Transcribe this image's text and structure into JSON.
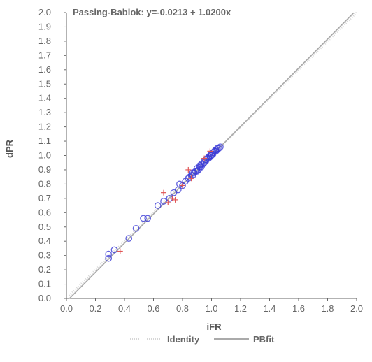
{
  "chart_data": {
    "type": "scatter",
    "title": "",
    "xlabel": "iFR",
    "ylabel": "dPR",
    "xlim": [
      0.0,
      2.0
    ],
    "ylim": [
      0.0,
      2.0
    ],
    "x_ticks": [
      "0.0",
      "0.2",
      "0.4",
      "0.6",
      "0.8",
      "1.0",
      "1.2",
      "1.4",
      "1.6",
      "1.8",
      "2.0"
    ],
    "y_ticks": [
      "0.0",
      "0.1",
      "0.2",
      "0.3",
      "0.4",
      "0.5",
      "0.6",
      "0.7",
      "0.8",
      "0.9",
      "1.0",
      "1.1",
      "1.2",
      "1.3",
      "1.4",
      "1.5",
      "1.6",
      "1.7",
      "1.8",
      "1.9",
      "2.0"
    ],
    "grid": false,
    "annotation": "Passing-Bablok: y=-0.0213 + 1.0200x",
    "legend_position": "bottom",
    "lines": [
      {
        "name": "Identity",
        "style": "dotted",
        "color": "#d6d6d6",
        "x": [
          0.02,
          2.0
        ],
        "y": [
          0.02,
          2.0
        ]
      },
      {
        "name": "PBfit",
        "style": "solid",
        "color": "#aaaaaa",
        "intercept": -0.0213,
        "slope": 1.02,
        "x": [
          0.02,
          1.98
        ]
      }
    ],
    "series": [
      {
        "marker": "circle",
        "color": "#3b3bd6",
        "points": [
          [
            0.29,
            0.28
          ],
          [
            0.29,
            0.31
          ],
          [
            0.33,
            0.34
          ],
          [
            0.43,
            0.42
          ],
          [
            0.48,
            0.49
          ],
          [
            0.53,
            0.56
          ],
          [
            0.56,
            0.56
          ],
          [
            0.63,
            0.65
          ],
          [
            0.67,
            0.68
          ],
          [
            0.71,
            0.7
          ],
          [
            0.74,
            0.74
          ],
          [
            0.77,
            0.76
          ],
          [
            0.78,
            0.8
          ],
          [
            0.8,
            0.79
          ],
          [
            0.82,
            0.82
          ],
          [
            0.84,
            0.84
          ],
          [
            0.85,
            0.85
          ],
          [
            0.86,
            0.86
          ],
          [
            0.87,
            0.86
          ],
          [
            0.87,
            0.88
          ],
          [
            0.88,
            0.88
          ],
          [
            0.89,
            0.89
          ],
          [
            0.9,
            0.89
          ],
          [
            0.9,
            0.91
          ],
          [
            0.91,
            0.9
          ],
          [
            0.92,
            0.92
          ],
          [
            0.92,
            0.93
          ],
          [
            0.93,
            0.92
          ],
          [
            0.93,
            0.94
          ],
          [
            0.94,
            0.94
          ],
          [
            0.95,
            0.95
          ],
          [
            0.95,
            0.96
          ],
          [
            0.96,
            0.96
          ],
          [
            0.96,
            0.97
          ],
          [
            0.97,
            0.98
          ],
          [
            0.98,
            0.98
          ],
          [
            0.98,
            0.99
          ],
          [
            0.99,
            0.99
          ],
          [
            0.99,
            1.0
          ],
          [
            1.0,
            1.0
          ],
          [
            1.0,
            1.01
          ],
          [
            1.01,
            1.01
          ],
          [
            1.01,
            1.02
          ],
          [
            1.02,
            1.03
          ],
          [
            1.03,
            1.03
          ],
          [
            1.03,
            1.04
          ],
          [
            1.04,
            1.04
          ],
          [
            1.04,
            1.05
          ],
          [
            1.05,
            1.05
          ],
          [
            1.06,
            1.06
          ]
        ]
      },
      {
        "marker": "plus",
        "color": "#e05555",
        "points": [
          [
            0.37,
            0.33
          ],
          [
            0.67,
            0.74
          ],
          [
            0.7,
            0.67
          ],
          [
            0.73,
            0.7
          ],
          [
            0.75,
            0.69
          ],
          [
            0.8,
            0.79
          ],
          [
            0.84,
            0.9
          ],
          [
            0.86,
            0.84
          ],
          [
            0.99,
            1.03
          ],
          [
            0.95,
            0.98
          ]
        ]
      }
    ]
  }
}
